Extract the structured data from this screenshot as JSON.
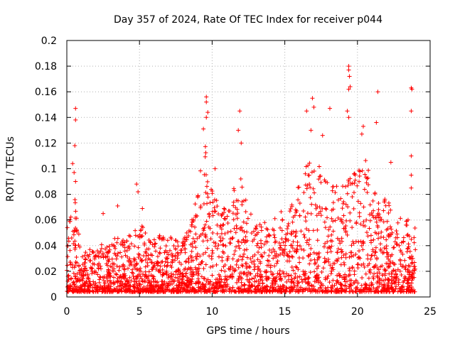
{
  "chart_data": {
    "type": "scatter",
    "title": "Day 357 of 2024, Rate Of TEC Index for receiver p044",
    "xlabel": "GPS time / hours",
    "ylabel": "ROTI / TECUs",
    "xlim": [
      0,
      25
    ],
    "ylim": [
      0,
      0.2
    ],
    "x_ticks": [
      "0",
      "5",
      "10",
      "15",
      "20",
      "25"
    ],
    "y_ticks": [
      "0",
      "0.02",
      "0.04",
      "0.06",
      "0.08",
      "0.1",
      "0.12",
      "0.14",
      "0.16",
      "0.18",
      "0.2"
    ],
    "grid": true,
    "marker": "+",
    "color": "#ff0000",
    "envelope": {
      "description": "approximate upper envelope of the dense point cloud (hour, ROTI)",
      "x": [
        0,
        0.5,
        1,
        1.5,
        2,
        2.5,
        3,
        3.5,
        4,
        4.5,
        5,
        5.5,
        6,
        6.5,
        7,
        7.5,
        8,
        8.5,
        9,
        9.5,
        10,
        10.5,
        11,
        11.5,
        12,
        12.5,
        13,
        13.5,
        14,
        14.5,
        15,
        15.5,
        16,
        16.5,
        17,
        17.5,
        18,
        18.5,
        19,
        19.5,
        20,
        20.5,
        21,
        21.5,
        22,
        22.5,
        23,
        23.5,
        24
      ],
      "y": [
        0.055,
        0.085,
        0.03,
        0.04,
        0.035,
        0.045,
        0.04,
        0.05,
        0.045,
        0.05,
        0.06,
        0.05,
        0.045,
        0.05,
        0.045,
        0.05,
        0.045,
        0.055,
        0.09,
        0.12,
        0.085,
        0.075,
        0.07,
        0.09,
        0.095,
        0.07,
        0.055,
        0.06,
        0.055,
        0.065,
        0.07,
        0.08,
        0.09,
        0.105,
        0.11,
        0.1,
        0.095,
        0.09,
        0.1,
        0.095,
        0.1,
        0.11,
        0.09,
        0.085,
        0.075,
        0.07,
        0.065,
        0.06,
        0.055
      ]
    },
    "outliers": [
      {
        "x": 0.6,
        "y": 0.147
      },
      {
        "x": 0.6,
        "y": 0.138
      },
      {
        "x": 0.55,
        "y": 0.118
      },
      {
        "x": 0.4,
        "y": 0.104
      },
      {
        "x": 0.5,
        "y": 0.097
      },
      {
        "x": 0.6,
        "y": 0.09
      },
      {
        "x": 2.5,
        "y": 0.065
      },
      {
        "x": 3.5,
        "y": 0.071
      },
      {
        "x": 4.8,
        "y": 0.088
      },
      {
        "x": 4.9,
        "y": 0.082
      },
      {
        "x": 5.2,
        "y": 0.069
      },
      {
        "x": 9.6,
        "y": 0.156
      },
      {
        "x": 9.6,
        "y": 0.152
      },
      {
        "x": 9.7,
        "y": 0.144
      },
      {
        "x": 9.6,
        "y": 0.14
      },
      {
        "x": 9.4,
        "y": 0.131
      },
      {
        "x": 10.2,
        "y": 0.1
      },
      {
        "x": 11.9,
        "y": 0.145
      },
      {
        "x": 11.8,
        "y": 0.13
      },
      {
        "x": 12.0,
        "y": 0.12
      },
      {
        "x": 16.5,
        "y": 0.145
      },
      {
        "x": 16.9,
        "y": 0.155
      },
      {
        "x": 17.0,
        "y": 0.148
      },
      {
        "x": 16.8,
        "y": 0.13
      },
      {
        "x": 18.1,
        "y": 0.147
      },
      {
        "x": 17.6,
        "y": 0.126
      },
      {
        "x": 19.4,
        "y": 0.18
      },
      {
        "x": 19.4,
        "y": 0.177
      },
      {
        "x": 19.45,
        "y": 0.172
      },
      {
        "x": 19.5,
        "y": 0.164
      },
      {
        "x": 19.4,
        "y": 0.162
      },
      {
        "x": 19.3,
        "y": 0.145
      },
      {
        "x": 19.4,
        "y": 0.14
      },
      {
        "x": 20.4,
        "y": 0.133
      },
      {
        "x": 20.3,
        "y": 0.127
      },
      {
        "x": 21.4,
        "y": 0.16
      },
      {
        "x": 21.3,
        "y": 0.136
      },
      {
        "x": 22.3,
        "y": 0.105
      },
      {
        "x": 23.7,
        "y": 0.163
      },
      {
        "x": 23.75,
        "y": 0.162
      },
      {
        "x": 23.7,
        "y": 0.145
      },
      {
        "x": 23.7,
        "y": 0.11
      },
      {
        "x": 23.7,
        "y": 0.095
      },
      {
        "x": 23.7,
        "y": 0.085
      }
    ]
  }
}
